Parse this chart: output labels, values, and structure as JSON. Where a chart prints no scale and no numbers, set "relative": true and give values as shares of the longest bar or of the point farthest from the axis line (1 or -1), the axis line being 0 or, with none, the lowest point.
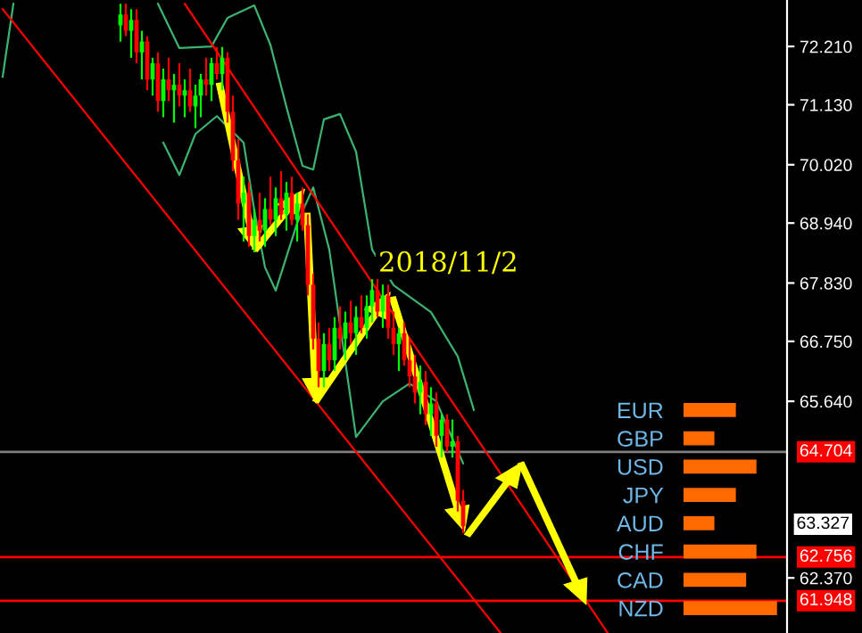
{
  "chart_data": [
    {
      "type": "candlestick",
      "tick_labels": "y",
      "grid": false,
      "categories": [
        null,
        null,
        null,
        null,
        null,
        null,
        null,
        null,
        null,
        null,
        null,
        null,
        null,
        null,
        null,
        null,
        null,
        null,
        null,
        null,
        null,
        null,
        null,
        null,
        null,
        null,
        null,
        null,
        null,
        null,
        null,
        null,
        null,
        null,
        null,
        null,
        null,
        null,
        null,
        null,
        null,
        null,
        null,
        null,
        null,
        null,
        null,
        null,
        null,
        null,
        null,
        null,
        null,
        null,
        null,
        null,
        null,
        null,
        null,
        null,
        null,
        null,
        null,
        null,
        null,
        null,
        null,
        null,
        null,
        null,
        null,
        null,
        null,
        null,
        null,
        null,
        null,
        null,
        null,
        null,
        null,
        null,
        null,
        null,
        null,
        null,
        null,
        null,
        null,
        null,
        null,
        null,
        null,
        null,
        null,
        null,
        null,
        null,
        null,
        null,
        null,
        null,
        null,
        null,
        null,
        null,
        null,
        null,
        null,
        null,
        null,
        null,
        null,
        null,
        null,
        null,
        null,
        null,
        null,
        null,
        null,
        null,
        null,
        null,
        null,
        null,
        null,
        null,
        null,
        null,
        null,
        null,
        null,
        null,
        null,
        null,
        null,
        null,
        null,
        null,
        null,
        null,
        null,
        null,
        null,
        null,
        null
      ],
      "ohlc": [
        null,
        null,
        null,
        null,
        null,
        null,
        null,
        null,
        null,
        null,
        null,
        null,
        null,
        null,
        null,
        null,
        null,
        null,
        null,
        null,
        null,
        null,
        [
          72.6,
          73.0,
          72.3,
          72.8
        ],
        [
          72.8,
          73.0,
          72.4,
          72.5
        ],
        [
          72.5,
          72.9,
          72.0,
          72.7
        ],
        [
          72.7,
          72.9,
          71.9,
          72.1
        ],
        [
          72.1,
          72.5,
          71.6,
          72.3
        ],
        [
          72.3,
          72.4,
          71.4,
          71.6
        ],
        [
          71.6,
          72.0,
          71.3,
          71.9
        ],
        [
          71.9,
          72.1,
          71.0,
          71.2
        ],
        [
          71.2,
          71.8,
          70.9,
          71.6
        ],
        [
          71.6,
          72.0,
          71.2,
          71.4
        ],
        [
          71.4,
          71.7,
          70.8,
          71.5
        ],
        [
          71.5,
          71.9,
          71.1,
          71.3
        ],
        [
          71.3,
          71.6,
          70.9,
          71.4
        ],
        [
          71.4,
          71.8,
          71.0,
          71.1
        ],
        [
          71.1,
          71.5,
          70.7,
          71.3
        ],
        [
          71.3,
          71.7,
          70.9,
          71.6
        ],
        [
          71.6,
          72.0,
          71.3,
          71.5
        ],
        [
          71.5,
          72.0,
          71.2,
          71.9
        ],
        [
          71.9,
          72.2,
          71.6,
          71.7
        ],
        [
          71.7,
          72.2,
          71.4,
          72.0
        ],
        [
          72.0,
          72.1,
          70.8,
          71.0
        ],
        [
          71.0,
          71.3,
          69.9,
          70.1
        ],
        [
          70.1,
          70.5,
          69.0,
          69.3
        ],
        [
          69.3,
          69.8,
          68.6,
          69.5
        ],
        [
          69.5,
          69.7,
          68.5,
          68.7
        ],
        [
          68.7,
          69.2,
          68.4,
          69.0
        ],
        [
          69.0,
          69.5,
          68.6,
          68.8
        ],
        [
          68.8,
          69.4,
          68.5,
          69.2
        ],
        [
          69.2,
          69.8,
          68.9,
          69.0
        ],
        [
          69.0,
          69.6,
          68.7,
          69.4
        ],
        [
          69.4,
          69.9,
          69.0,
          69.1
        ],
        [
          69.1,
          69.7,
          68.8,
          69.5
        ],
        [
          69.5,
          69.8,
          68.9,
          69.0
        ],
        [
          69.0,
          69.5,
          68.6,
          69.3
        ],
        [
          69.3,
          69.6,
          68.8,
          68.9
        ],
        [
          68.9,
          69.1,
          67.6,
          67.8
        ],
        [
          67.8,
          68.0,
          66.6,
          66.8
        ],
        [
          66.8,
          67.1,
          65.9,
          66.2
        ],
        [
          66.2,
          66.9,
          65.9,
          66.7
        ],
        [
          66.7,
          67.0,
          66.2,
          66.4
        ],
        [
          66.4,
          67.2,
          66.2,
          67.0
        ],
        [
          67.0,
          67.4,
          66.6,
          66.8
        ],
        [
          66.8,
          67.3,
          66.4,
          67.1
        ],
        [
          67.1,
          67.5,
          66.7,
          66.9
        ],
        [
          66.9,
          67.4,
          66.5,
          67.2
        ],
        [
          67.2,
          67.6,
          66.9,
          67.0
        ],
        [
          67.0,
          67.6,
          66.8,
          67.4
        ],
        [
          67.4,
          67.9,
          67.1,
          67.7
        ],
        [
          67.7,
          67.9,
          67.2,
          67.3
        ],
        [
          67.3,
          67.8,
          67.0,
          67.6
        ],
        [
          67.6,
          67.8,
          66.8,
          67.0
        ],
        [
          67.0,
          67.3,
          66.5,
          66.7
        ],
        [
          66.7,
          67.0,
          66.2,
          66.9
        ],
        [
          66.9,
          67.1,
          66.3,
          66.4
        ],
        [
          66.4,
          66.8,
          65.9,
          66.1
        ],
        [
          66.1,
          66.5,
          65.6,
          65.8
        ],
        [
          65.8,
          66.3,
          65.4,
          66.0
        ],
        [
          66.0,
          66.2,
          65.2,
          65.4
        ],
        [
          65.4,
          65.9,
          65.0,
          65.6
        ],
        [
          65.6,
          65.8,
          64.8,
          65.0
        ],
        [
          65.0,
          65.4,
          64.6,
          65.3
        ],
        [
          65.3,
          65.4,
          64.7,
          64.8
        ],
        [
          64.8,
          65.3,
          64.6,
          64.9
        ],
        [
          64.9,
          65.0,
          63.6,
          63.8
        ],
        [
          63.8,
          64.0,
          63.2,
          63.327
        ],
        null,
        null,
        null,
        null,
        null,
        null,
        null,
        null,
        null,
        null,
        null,
        null,
        null,
        null,
        null,
        null,
        null,
        null,
        null,
        null,
        null,
        null,
        null,
        null,
        null,
        null,
        null,
        null,
        null,
        null,
        null,
        null,
        null,
        null,
        null,
        null,
        null,
        null,
        null,
        null,
        null,
        null,
        null,
        null,
        null,
        null,
        null,
        null,
        null,
        null,
        null,
        null,
        null,
        null,
        null,
        null,
        null,
        null,
        null,
        null
      ],
      "series": [
        {
          "type": "line",
          "color": "#3cb371",
          "values": [
            null,
            null,
            null,
            null,
            null,
            null,
            null,
            null,
            null,
            null,
            null,
            null,
            null,
            null,
            null,
            null,
            null,
            null,
            null,
            null,
            null,
            null,
            null,
            null,
            null,
            null,
            null,
            null,
            null,
            73.0,
            null,
            null,
            null,
            72.18,
            null,
            null,
            null,
            null,
            null,
            72.21,
            null,
            null,
            72.74,
            null,
            null,
            null,
            null,
            72.97,
            null,
            null,
            72.24,
            null,
            null,
            71.09,
            null,
            null,
            70.0,
            null,
            69.93,
            null,
            70.86,
            null,
            null,
            70.96,
            null,
            null,
            70.26,
            null,
            null,
            68.45,
            null,
            null,
            null,
            67.79,
            null,
            null,
            null,
            null,
            null,
            null,
            67.29,
            null,
            null,
            null,
            null,
            66.47,
            null,
            null,
            65.48,
            null,
            null,
            null,
            null,
            null,
            null,
            null,
            null,
            null,
            null,
            null,
            null,
            null,
            null,
            null,
            null,
            null,
            null,
            null,
            null,
            null,
            null,
            null,
            null,
            null,
            null,
            null,
            null,
            null,
            null,
            null,
            null,
            null,
            null,
            null,
            null,
            null,
            null,
            null,
            null,
            null,
            null,
            null,
            null,
            null,
            null,
            null,
            null,
            null,
            null,
            null,
            null,
            null,
            null,
            null,
            null,
            null,
            null
          ]
        },
        {
          "type": "line",
          "color": "#3cb371",
          "values": [
            null,
            null,
            null,
            null,
            null,
            null,
            null,
            null,
            null,
            null,
            null,
            null,
            null,
            null,
            null,
            null,
            null,
            null,
            null,
            null,
            null,
            null,
            null,
            null,
            null,
            null,
            null,
            null,
            null,
            null,
            70.43,
            null,
            null,
            69.83,
            null,
            null,
            70.59,
            null,
            null,
            null,
            70.92,
            null,
            null,
            null,
            null,
            70.43,
            null,
            69.17,
            null,
            68.12,
            null,
            67.69,
            null,
            null,
            null,
            68.94,
            null,
            null,
            69.6,
            null,
            null,
            68.45,
            null,
            null,
            null,
            null,
            64.98,
            null,
            null,
            null,
            null,
            65.64,
            null,
            null,
            null,
            null,
            65.97,
            null,
            null,
            null,
            null,
            65.64,
            null,
            null,
            null,
            null,
            64.49,
            null,
            null,
            null,
            null,
            null,
            null,
            null,
            null,
            null,
            null,
            null,
            null,
            null,
            null,
            null,
            null,
            null,
            null,
            null,
            null,
            null,
            null,
            null,
            null,
            null,
            null,
            null,
            null,
            null,
            null,
            null,
            null,
            null,
            null,
            null,
            null,
            null,
            null,
            null,
            null,
            null,
            null,
            null,
            null,
            null,
            null,
            null,
            null,
            null,
            null,
            null,
            null,
            null,
            null,
            null,
            null,
            null,
            null,
            null,
            null
          ]
        },
        {
          "type": "line",
          "color": "#3cb371",
          "values": [
            71.65,
            null,
            73.0,
            null,
            null,
            null,
            null,
            null,
            null,
            null,
            null,
            null,
            null,
            null,
            null,
            null,
            null,
            null,
            null,
            null,
            null,
            null,
            null,
            null,
            null,
            null,
            null,
            null,
            null,
            null,
            null,
            null,
            null,
            null,
            null,
            null,
            null,
            null,
            null,
            null,
            null,
            null,
            null,
            null,
            null,
            null,
            null,
            null,
            null,
            null,
            null,
            null,
            null,
            null,
            null,
            null,
            null,
            null,
            null,
            null,
            null,
            null,
            null,
            null,
            null,
            null,
            null,
            null,
            null,
            null,
            null,
            null,
            null,
            null,
            null,
            null,
            null,
            null,
            null,
            null,
            null,
            null,
            null,
            null,
            null,
            null,
            null,
            null,
            null,
            null,
            null,
            null,
            null,
            null,
            null,
            null,
            null,
            null,
            null,
            null,
            null,
            null,
            null,
            null,
            null,
            null,
            null,
            null,
            null,
            null,
            null,
            null,
            null,
            null,
            null,
            null,
            null,
            null,
            null,
            null,
            null,
            null,
            null,
            null,
            null,
            null,
            null,
            null,
            null,
            null,
            null,
            null,
            null,
            null,
            null,
            null,
            null,
            null,
            null,
            null,
            null,
            null,
            null,
            null,
            null,
            null,
            null
          ]
        },
        {
          "type": "line",
          "color": "#ff0000",
          "values": [
            null,
            null,
            null,
            null,
            null,
            null,
            null,
            null,
            null,
            null,
            null,
            null,
            null,
            null,
            null,
            null,
            null,
            null,
            null,
            null,
            null,
            null,
            null,
            null,
            null,
            null,
            null,
            null,
            null,
            null,
            null,
            null,
            null,
            null,
            73.0,
            null,
            null,
            null,
            null,
            null,
            null,
            null,
            null,
            null,
            null,
            null,
            null,
            null,
            null,
            null,
            null,
            null,
            null,
            null,
            null,
            null,
            null,
            null,
            null,
            null,
            null,
            null,
            null,
            null,
            null,
            null,
            null,
            null,
            null,
            null,
            null,
            null,
            null,
            null,
            null,
            null,
            null,
            null,
            null,
            null,
            null,
            null,
            null,
            null,
            null,
            null,
            null,
            null,
            null,
            null,
            null,
            null,
            null,
            null,
            null,
            null,
            null,
            null,
            null,
            null,
            null,
            null,
            null,
            null,
            null,
            null,
            null,
            null,
            null,
            null,
            null,
            null,
            null,
            61.35,
            null,
            null,
            null,
            null,
            null,
            null,
            null,
            null,
            null,
            null,
            null,
            null,
            null,
            null,
            null,
            null,
            null,
            null,
            null,
            null,
            null,
            null,
            null,
            null,
            null,
            null,
            null,
            null,
            null,
            null,
            null,
            null,
            null
          ]
        },
        {
          "type": "line",
          "color": "#ff0000",
          "values": [
            72.9,
            null,
            null,
            null,
            null,
            null,
            null,
            null,
            null,
            null,
            null,
            null,
            null,
            null,
            null,
            null,
            null,
            null,
            null,
            null,
            null,
            null,
            null,
            null,
            null,
            null,
            null,
            null,
            null,
            null,
            null,
            null,
            null,
            null,
            null,
            null,
            null,
            null,
            null,
            null,
            null,
            null,
            null,
            null,
            null,
            null,
            null,
            null,
            null,
            null,
            null,
            null,
            null,
            null,
            null,
            null,
            null,
            null,
            null,
            null,
            null,
            null,
            null,
            null,
            null,
            null,
            null,
            null,
            null,
            null,
            null,
            null,
            null,
            null,
            null,
            null,
            null,
            null,
            null,
            null,
            null,
            null,
            null,
            null,
            null,
            null,
            null,
            null,
            null,
            null,
            null,
            null,
            null,
            61.35,
            null,
            null,
            null,
            null,
            null,
            null,
            null,
            null,
            null,
            null,
            null,
            null,
            null,
            null,
            null,
            null,
            null,
            null,
            null,
            null,
            null,
            null,
            null,
            null,
            null,
            null,
            null,
            null,
            null,
            null,
            null,
            null,
            null,
            null,
            null,
            null,
            null,
            null,
            null,
            null,
            null,
            null,
            null,
            null,
            null,
            null,
            null,
            null,
            null,
            null,
            null,
            null,
            null
          ]
        }
      ],
      "ylim": [
        61.35,
        73.07
      ],
      "yticks": [
        {
          "value": 72.21,
          "label": "72.210"
        },
        {
          "value": 71.13,
          "label": "71.130"
        },
        {
          "value": 70.02,
          "label": "70.020"
        },
        {
          "value": 68.94,
          "label": "68.940"
        },
        {
          "value": 67.83,
          "label": "67.830"
        },
        {
          "value": 66.75,
          "label": "66.750"
        },
        {
          "value": 65.64,
          "label": "65.640"
        },
        {
          "value": 62.37,
          "label": "62.370"
        }
      ],
      "ref_lines": [
        {
          "axis": "y",
          "value": 64.704,
          "label": "64.704",
          "color": "#808080"
        },
        {
          "axis": "y",
          "value": 62.756,
          "label": "62.756",
          "color": "#ff0000"
        },
        {
          "axis": "y",
          "value": 61.948,
          "label": "61.948",
          "color": "#ff0000"
        }
      ],
      "annotations": [
        "63.327",
        "2018/11/2"
      ]
    },
    {
      "type": "bar",
      "orientation": "horizontal",
      "relative": true,
      "color": "#ff6a00",
      "categories": [
        "EUR",
        "GBP",
        "USD",
        "JPY",
        "AUD",
        "CHF",
        "CAD",
        "NZD"
      ],
      "values": [
        0.56,
        0.33,
        0.78,
        0.56,
        0.33,
        0.78,
        0.67,
        1
      ]
    }
  ]
}
